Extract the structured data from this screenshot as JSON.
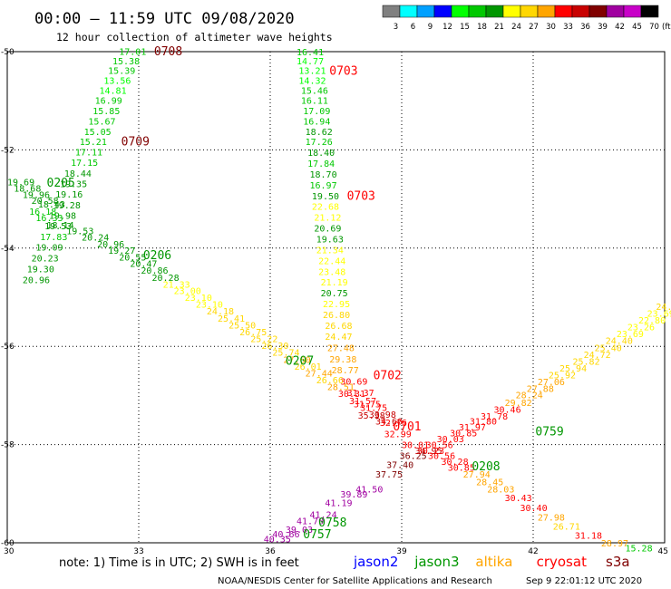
{
  "header": {
    "title": "00:00 – 11:59 UTC 09/08/2020",
    "subtitle": "12 hour collection of altimeter wave heights"
  },
  "colorbar": {
    "labels": [
      "3",
      "6",
      "9",
      "12",
      "15",
      "18",
      "21",
      "24",
      "27",
      "30",
      "33",
      "36",
      "39",
      "42",
      "45",
      "70"
    ],
    "unit": "(ft)",
    "colors": [
      "#808080",
      "#00ffff",
      "#00a0ff",
      "#0000ff",
      "#00ff00",
      "#00c800",
      "#009600",
      "#ffff00",
      "#ffd700",
      "#ffa500",
      "#ff0000",
      "#c80000",
      "#800000",
      "#a000a0",
      "#c800c8",
      "#000000"
    ]
  },
  "footer": {
    "note": "note:  1) Time is in UTC;  2) SWH is in feet",
    "satellites": [
      {
        "name": "jason2",
        "color": "#0000ff"
      },
      {
        "name": "jason3",
        "color": "#009600"
      },
      {
        "name": "altika",
        "color": "#ffa500"
      },
      {
        "name": "cryosat",
        "color": "#ff0000"
      },
      {
        "name": "s3a",
        "color": "#800000"
      }
    ],
    "credit_left": "NOAA/NESDIS Center for Satellite Applications and Research",
    "credit_right": "Sep  9 22:01:12 UTC 2020"
  },
  "chart_data": {
    "type": "scatter",
    "title": "00:00 – 11:59 UTC 09/08/2020",
    "subtitle": "12 hour collection of altimeter wave heights",
    "xlim": [
      30,
      45
    ],
    "ylim": [
      -60,
      -50
    ],
    "xticks": [
      30,
      33,
      36,
      39,
      42,
      45
    ],
    "yticks": [
      -50,
      -52,
      -54,
      -56,
      -58,
      -60
    ],
    "xtick_labels": [
      "30",
      "33",
      "36",
      "39",
      "42",
      "45"
    ],
    "ytick_labels": [
      "-50",
      "-52",
      "-54",
      "-56",
      "-58",
      "-60"
    ],
    "grid": true,
    "pass_labels": [
      {
        "text": "0708",
        "lon": 33.35,
        "lat": -49.98,
        "color": "#800000"
      },
      {
        "text": "0709",
        "lon": 32.6,
        "lat": -51.82,
        "color": "#800000"
      },
      {
        "text": "0205",
        "lon": 30.9,
        "lat": -52.66,
        "color": "#009600"
      },
      {
        "text": "0206",
        "lon": 33.1,
        "lat": -54.13,
        "color": "#009600"
      },
      {
        "text": "0703",
        "lon": 37.35,
        "lat": -50.38,
        "color": "#ff0000"
      },
      {
        "text": "0703",
        "lon": 37.75,
        "lat": -52.92,
        "color": "#ff0000"
      },
      {
        "text": "0207",
        "lon": 36.35,
        "lat": -56.28,
        "color": "#009600"
      },
      {
        "text": "0702",
        "lon": 38.35,
        "lat": -56.58,
        "color": "#ff0000"
      },
      {
        "text": "0701",
        "lon": 38.8,
        "lat": -57.62,
        "color": "#ff0000"
      },
      {
        "text": "0759",
        "lon": 42.05,
        "lat": -57.72,
        "color": "#009600"
      },
      {
        "text": "0208",
        "lon": 40.6,
        "lat": -58.43,
        "color": "#009600"
      },
      {
        "text": "0758",
        "lon": 37.1,
        "lat": -59.58,
        "color": "#009600"
      },
      {
        "text": "0757",
        "lon": 36.75,
        "lat": -59.82,
        "color": "#009600"
      }
    ],
    "tracks": [
      {
        "points": [
          {
            "lon": 32.55,
            "lat": -49.99,
            "v": 17.01
          },
          {
            "lon": 32.4,
            "lat": -50.18,
            "v": 15.38
          },
          {
            "lon": 32.3,
            "lat": -50.38,
            "v": 15.39
          },
          {
            "lon": 32.2,
            "lat": -50.58,
            "v": 13.56
          },
          {
            "lon": 32.1,
            "lat": -50.78,
            "v": 14.81
          },
          {
            "lon": 32.0,
            "lat": -50.99,
            "v": 16.99
          },
          {
            "lon": 31.95,
            "lat": -51.2,
            "v": 15.85
          },
          {
            "lon": 31.85,
            "lat": -51.41,
            "v": 15.67
          },
          {
            "lon": 31.75,
            "lat": -51.62,
            "v": 15.05
          },
          {
            "lon": 31.65,
            "lat": -51.83,
            "v": 15.21
          },
          {
            "lon": 31.55,
            "lat": -52.04,
            "v": 17.11
          },
          {
            "lon": 31.45,
            "lat": -52.25,
            "v": 17.15
          },
          {
            "lon": 31.3,
            "lat": -52.47,
            "v": 18.44
          },
          {
            "lon": 31.2,
            "lat": -52.68,
            "v": 19.35
          },
          {
            "lon": 31.1,
            "lat": -52.9,
            "v": 19.16
          },
          {
            "lon": 31.05,
            "lat": -53.12,
            "v": 19.28
          },
          {
            "lon": 30.95,
            "lat": -53.33,
            "v": 19.98
          },
          {
            "lon": 30.85,
            "lat": -53.54,
            "v": 19.53
          },
          {
            "lon": 30.75,
            "lat": -53.76,
            "v": 17.83
          },
          {
            "lon": 30.65,
            "lat": -53.98,
            "v": 19.09
          },
          {
            "lon": 30.55,
            "lat": -54.2,
            "v": 20.23
          },
          {
            "lon": 30.45,
            "lat": -54.42,
            "v": 19.3
          },
          {
            "lon": 30.35,
            "lat": -54.64,
            "v": 20.96
          }
        ]
      },
      {
        "points": [
          {
            "lon": 30.0,
            "lat": -52.65,
            "v": 19.69
          },
          {
            "lon": 30.15,
            "lat": -52.78,
            "v": 18.68
          },
          {
            "lon": 30.35,
            "lat": -52.91,
            "v": 19.96
          },
          {
            "lon": 30.55,
            "lat": -53.03,
            "v": 20.58
          },
          {
            "lon": 30.7,
            "lat": -53.1,
            "v": 18.43
          },
          {
            "lon": 30.5,
            "lat": -53.25,
            "v": 16.18
          },
          {
            "lon": 30.65,
            "lat": -53.38,
            "v": 16.33
          },
          {
            "lon": 30.9,
            "lat": -53.52,
            "v": 18.14
          },
          {
            "lon": 31.35,
            "lat": -53.64,
            "v": 19.53
          },
          {
            "lon": 31.7,
            "lat": -53.77,
            "v": 20.24
          },
          {
            "lon": 32.05,
            "lat": -53.91,
            "v": 20.96
          },
          {
            "lon": 32.3,
            "lat": -54.04,
            "v": 19.27
          },
          {
            "lon": 32.55,
            "lat": -54.18,
            "v": 20.55
          },
          {
            "lon": 32.8,
            "lat": -54.31,
            "v": 20.47
          },
          {
            "lon": 33.05,
            "lat": -54.45,
            "v": 20.86
          },
          {
            "lon": 33.3,
            "lat": -54.59,
            "v": 20.28
          },
          {
            "lon": 33.55,
            "lat": -54.73,
            "v": 21.33
          },
          {
            "lon": 33.8,
            "lat": -54.86,
            "v": 23.0
          },
          {
            "lon": 34.05,
            "lat": -55.0,
            "v": 23.1
          },
          {
            "lon": 34.3,
            "lat": -55.14,
            "v": 23.1
          },
          {
            "lon": 34.55,
            "lat": -55.28,
            "v": 24.18
          },
          {
            "lon": 34.8,
            "lat": -55.42,
            "v": 25.41
          },
          {
            "lon": 35.05,
            "lat": -55.56,
            "v": 25.5
          },
          {
            "lon": 35.3,
            "lat": -55.7,
            "v": 26.75
          },
          {
            "lon": 35.55,
            "lat": -55.84,
            "v": 25.22
          },
          {
            "lon": 35.8,
            "lat": -55.98,
            "v": 26.3
          },
          {
            "lon": 36.05,
            "lat": -56.12,
            "v": 25.74
          },
          {
            "lon": 36.3,
            "lat": -56.26,
            "v": 27.6
          },
          {
            "lon": 36.55,
            "lat": -56.4,
            "v": 26.01
          },
          {
            "lon": 36.8,
            "lat": -56.54,
            "v": 27.44
          },
          {
            "lon": 37.05,
            "lat": -56.68,
            "v": 26.66
          },
          {
            "lon": 37.3,
            "lat": -56.82,
            "v": 28.51
          },
          {
            "lon": 37.55,
            "lat": -56.96,
            "v": 30.31
          },
          {
            "lon": 37.8,
            "lat": -57.1,
            "v": 31.57
          },
          {
            "lon": 38.05,
            "lat": -57.24,
            "v": 31.75
          },
          {
            "lon": 38.25,
            "lat": -57.38,
            "v": 33.98
          },
          {
            "lon": 38.4,
            "lat": -57.52,
            "v": 34.6
          }
        ]
      },
      {
        "points": [
          {
            "lon": 36.6,
            "lat": -50.0,
            "v": 16.41
          },
          {
            "lon": 36.6,
            "lat": -50.18,
            "v": 14.77
          },
          {
            "lon": 36.65,
            "lat": -50.38,
            "v": 13.21
          },
          {
            "lon": 36.65,
            "lat": -50.58,
            "v": 14.32
          },
          {
            "lon": 36.7,
            "lat": -50.78,
            "v": 15.46
          },
          {
            "lon": 36.7,
            "lat": -50.99,
            "v": 16.11
          },
          {
            "lon": 36.75,
            "lat": -51.2,
            "v": 17.09
          },
          {
            "lon": 36.75,
            "lat": -51.41,
            "v": 16.94
          },
          {
            "lon": 36.8,
            "lat": -51.62,
            "v": 18.62
          },
          {
            "lon": 36.8,
            "lat": -51.83,
            "v": 17.26
          },
          {
            "lon": 36.85,
            "lat": -52.05,
            "v": 18.4
          },
          {
            "lon": 36.85,
            "lat": -52.27,
            "v": 17.84
          },
          {
            "lon": 36.9,
            "lat": -52.49,
            "v": 18.7
          },
          {
            "lon": 36.9,
            "lat": -52.71,
            "v": 16.97
          },
          {
            "lon": 36.95,
            "lat": -52.93,
            "v": 19.5
          },
          {
            "lon": 36.95,
            "lat": -53.15,
            "v": 22.68
          },
          {
            "lon": 37.0,
            "lat": -53.37,
            "v": 21.12
          },
          {
            "lon": 37.0,
            "lat": -53.59,
            "v": 20.69
          },
          {
            "lon": 37.05,
            "lat": -53.81,
            "v": 19.63
          },
          {
            "lon": 37.05,
            "lat": -54.03,
            "v": 21.34
          },
          {
            "lon": 37.1,
            "lat": -54.25,
            "v": 22.44
          },
          {
            "lon": 37.1,
            "lat": -54.47,
            "v": 23.48
          },
          {
            "lon": 37.15,
            "lat": -54.69,
            "v": 21.19
          },
          {
            "lon": 37.15,
            "lat": -54.91,
            "v": 20.75
          },
          {
            "lon": 37.2,
            "lat": -55.13,
            "v": 22.95
          },
          {
            "lon": 37.2,
            "lat": -55.35,
            "v": 26.8
          },
          {
            "lon": 37.25,
            "lat": -55.57,
            "v": 26.68
          },
          {
            "lon": 37.25,
            "lat": -55.79,
            "v": 24.47
          },
          {
            "lon": 37.3,
            "lat": -56.02,
            "v": 27.48
          },
          {
            "lon": 37.35,
            "lat": -56.25,
            "v": 29.38
          },
          {
            "lon": 37.4,
            "lat": -56.48,
            "v": 28.77
          },
          {
            "lon": 37.6,
            "lat": -56.71,
            "v": 30.69
          },
          {
            "lon": 37.75,
            "lat": -56.94,
            "v": 31.37
          },
          {
            "lon": 37.9,
            "lat": -57.17,
            "v": 31.75
          },
          {
            "lon": 38.0,
            "lat": -57.4,
            "v": 35.98
          },
          {
            "lon": 38.5,
            "lat": -57.55,
            "v": 32.76
          }
        ]
      },
      {
        "points": [
          {
            "lon": 38.6,
            "lat": -57.78,
            "v": 32.99
          },
          {
            "lon": 39.0,
            "lat": -58.0,
            "v": 30.01
          },
          {
            "lon": 39.35,
            "lat": -58.12,
            "v": 30.23
          },
          {
            "lon": 39.6,
            "lat": -58.22,
            "v": 30.56
          },
          {
            "lon": 39.9,
            "lat": -58.34,
            "v": 30.28
          },
          {
            "lon": 40.05,
            "lat": -58.46,
            "v": 30.85
          },
          {
            "lon": 40.4,
            "lat": -58.6,
            "v": 27.94
          },
          {
            "lon": 40.7,
            "lat": -58.75,
            "v": 28.45
          },
          {
            "lon": 40.95,
            "lat": -58.9,
            "v": 28.03
          },
          {
            "lon": 41.35,
            "lat": -59.08,
            "v": 30.43
          },
          {
            "lon": 41.7,
            "lat": -59.28,
            "v": 30.4
          },
          {
            "lon": 42.1,
            "lat": -59.47,
            "v": 27.98
          },
          {
            "lon": 42.45,
            "lat": -59.66,
            "v": 26.71
          },
          {
            "lon": 42.95,
            "lat": -59.84,
            "v": 31.18
          },
          {
            "lon": 43.55,
            "lat": -60.0,
            "v": 28.97
          },
          {
            "lon": 44.1,
            "lat": -60.1,
            "v": 15.28
          }
        ]
      },
      {
        "points": [
          {
            "lon": 35.85,
            "lat": -59.92,
            "v": 40.35
          },
          {
            "lon": 36.05,
            "lat": -59.82,
            "v": 40.66
          },
          {
            "lon": 36.35,
            "lat": -59.72,
            "v": 39.03
          },
          {
            "lon": 36.6,
            "lat": -59.55,
            "v": 41.7
          },
          {
            "lon": 36.9,
            "lat": -59.42,
            "v": 41.24
          },
          {
            "lon": 37.25,
            "lat": -59.18,
            "v": 41.19
          },
          {
            "lon": 37.6,
            "lat": -59.0,
            "v": 39.89
          },
          {
            "lon": 37.95,
            "lat": -58.9,
            "v": 41.5
          },
          {
            "lon": 38.4,
            "lat": -58.6,
            "v": 37.75
          },
          {
            "lon": 38.65,
            "lat": -58.4,
            "v": 37.4
          },
          {
            "lon": 38.95,
            "lat": -58.22,
            "v": 36.25
          },
          {
            "lon": 39.3,
            "lat": -58.12,
            "v": 34.95
          },
          {
            "lon": 39.55,
            "lat": -58.0,
            "v": 30.56
          },
          {
            "lon": 39.8,
            "lat": -57.88,
            "v": 30.03
          },
          {
            "lon": 40.1,
            "lat": -57.76,
            "v": 30.85
          },
          {
            "lon": 40.3,
            "lat": -57.64,
            "v": 31.97
          },
          {
            "lon": 40.55,
            "lat": -57.52,
            "v": 31.8
          },
          {
            "lon": 40.8,
            "lat": -57.42,
            "v": 31.78
          },
          {
            "lon": 41.1,
            "lat": -57.28,
            "v": 30.46
          },
          {
            "lon": 41.35,
            "lat": -57.14,
            "v": 29.82
          },
          {
            "lon": 41.6,
            "lat": -56.98,
            "v": 28.24
          },
          {
            "lon": 41.85,
            "lat": -56.85,
            "v": 27.88
          },
          {
            "lon": 42.1,
            "lat": -56.72,
            "v": 27.06
          },
          {
            "lon": 42.35,
            "lat": -56.58,
            "v": 25.92
          },
          {
            "lon": 42.6,
            "lat": -56.44,
            "v": 25.94
          },
          {
            "lon": 42.9,
            "lat": -56.3,
            "v": 25.82
          },
          {
            "lon": 43.15,
            "lat": -56.16,
            "v": 24.72
          },
          {
            "lon": 43.4,
            "lat": -56.02,
            "v": 25.4
          },
          {
            "lon": 43.65,
            "lat": -55.88,
            "v": 24.4
          },
          {
            "lon": 43.9,
            "lat": -55.74,
            "v": 23.69
          },
          {
            "lon": 44.15,
            "lat": -55.6,
            "v": 23.26
          },
          {
            "lon": 44.4,
            "lat": -55.46,
            "v": 22.8
          },
          {
            "lon": 44.6,
            "lat": -55.32,
            "v": 23.69
          },
          {
            "lon": 44.8,
            "lat": -55.18,
            "v": 24.01
          }
        ]
      }
    ]
  }
}
